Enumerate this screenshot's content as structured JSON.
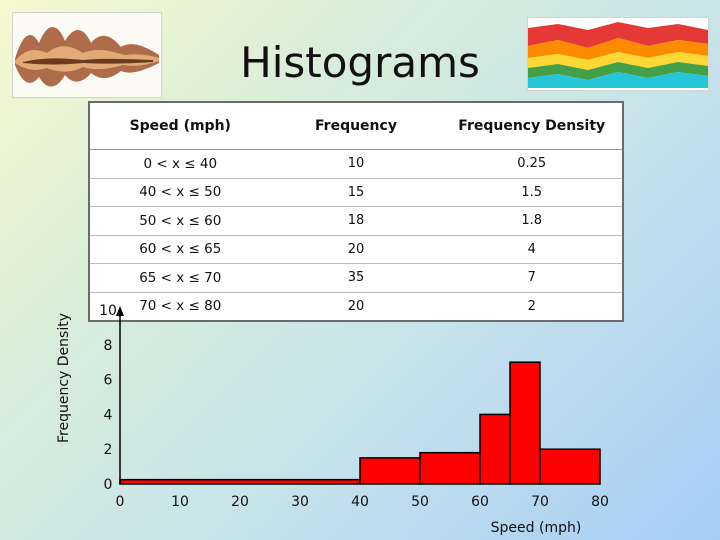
{
  "slide": {
    "title": "Histograms"
  },
  "table": {
    "headers": [
      "Speed (mph)",
      "Frequency",
      "Frequency Density"
    ],
    "rows": [
      {
        "range": "0 < x ≤ 40",
        "frequency": "10",
        "density": "0.25"
      },
      {
        "range": "40 < x ≤ 50",
        "frequency": "15",
        "density": "1.5"
      },
      {
        "range": "50 < x ≤ 60",
        "frequency": "18",
        "density": "1.8"
      },
      {
        "range": "60 < x ≤ 65",
        "frequency": "20",
        "density": "4"
      },
      {
        "range": "65 < x ≤ 70",
        "frequency": "35",
        "density": "7"
      },
      {
        "range": "70 < x ≤ 80",
        "frequency": "20",
        "density": "2"
      }
    ]
  },
  "chart_data": {
    "type": "bar",
    "title": "",
    "xlabel": "Speed (mph)",
    "ylabel": "Frequency Density",
    "xlim": [
      0,
      80
    ],
    "ylim": [
      0,
      10
    ],
    "x_ticks": [
      "0",
      "10",
      "20",
      "30",
      "40",
      "50",
      "60",
      "70",
      "80"
    ],
    "y_ticks": [
      "0",
      "2",
      "4",
      "6",
      "8",
      "10"
    ],
    "bins": [
      {
        "start": 0,
        "end": 40,
        "value": 0.25
      },
      {
        "start": 40,
        "end": 50,
        "value": 1.5
      },
      {
        "start": 50,
        "end": 60,
        "value": 1.8
      },
      {
        "start": 60,
        "end": 65,
        "value": 4
      },
      {
        "start": 65,
        "end": 70,
        "value": 7
      },
      {
        "start": 70,
        "end": 80,
        "value": 2
      }
    ],
    "bar_color": "#ff0000"
  }
}
